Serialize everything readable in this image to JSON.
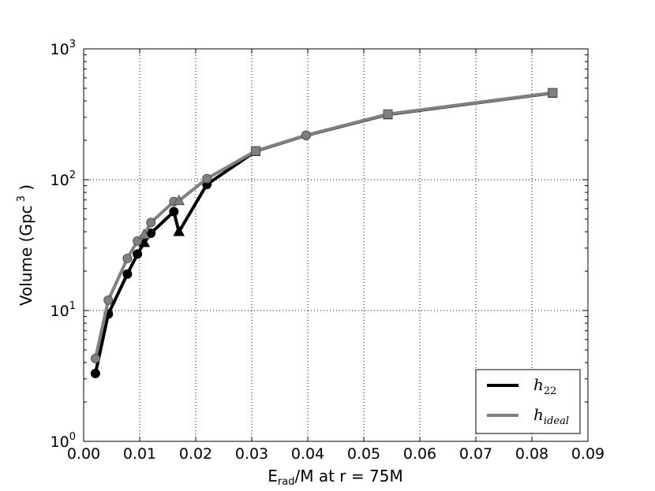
{
  "chart_data": {
    "type": "line",
    "xlabel": {
      "base": "E",
      "sub": "rad",
      "rest": "/M at r = 75M"
    },
    "ylabel": {
      "text": "Volume (Gpc",
      "sup": "3",
      "close": " )"
    },
    "xlim": [
      0.0,
      0.09
    ],
    "ylim": [
      1,
      1000
    ],
    "yscale": "log",
    "grid": true,
    "x_ticks": [
      0.0,
      0.01,
      0.02,
      0.03,
      0.04,
      0.05,
      0.06,
      0.07,
      0.08,
      0.09
    ],
    "x_tick_labels": [
      "0.00",
      "0.01",
      "0.02",
      "0.03",
      "0.04",
      "0.05",
      "0.06",
      "0.07",
      "0.08",
      "0.09"
    ],
    "y_ticks": [
      {
        "value": 1,
        "base": "10",
        "exp": "0"
      },
      {
        "value": 10,
        "base": "10",
        "exp": "1"
      },
      {
        "value": 100,
        "base": "10",
        "exp": "2"
      },
      {
        "value": 1000,
        "base": "10",
        "exp": "3"
      }
    ],
    "legend": {
      "placement": "lower-right"
    },
    "series": [
      {
        "name": "h",
        "name_sub": "22",
        "color": "#000000",
        "points": [
          {
            "x": 0.0021,
            "y": 3.3,
            "marker": "circle"
          },
          {
            "x": 0.0044,
            "y": 9.4,
            "marker": "circle"
          },
          {
            "x": 0.0078,
            "y": 19,
            "marker": "circle"
          },
          {
            "x": 0.0096,
            "y": 27,
            "marker": "circle"
          },
          {
            "x": 0.0108,
            "y": 33,
            "marker": "triangle"
          },
          {
            "x": 0.012,
            "y": 39,
            "marker": "circle"
          },
          {
            "x": 0.0161,
            "y": 57,
            "marker": "circle"
          },
          {
            "x": 0.017,
            "y": 40,
            "marker": "triangle"
          },
          {
            "x": 0.022,
            "y": 92,
            "marker": "circle"
          },
          {
            "x": 0.0307,
            "y": 165,
            "marker": "square"
          },
          {
            "x": 0.0397,
            "y": 218,
            "marker": "circle"
          },
          {
            "x": 0.0543,
            "y": 315,
            "marker": "square"
          },
          {
            "x": 0.0837,
            "y": 460,
            "marker": "square"
          }
        ]
      },
      {
        "name": "h",
        "name_sub": "ideal",
        "color": "#808080",
        "points": [
          {
            "x": 0.0021,
            "y": 4.3,
            "marker": "circle"
          },
          {
            "x": 0.0044,
            "y": 12,
            "marker": "circle"
          },
          {
            "x": 0.0078,
            "y": 25,
            "marker": "circle"
          },
          {
            "x": 0.0096,
            "y": 34,
            "marker": "circle"
          },
          {
            "x": 0.0108,
            "y": 38,
            "marker": "triangle"
          },
          {
            "x": 0.012,
            "y": 47,
            "marker": "circle"
          },
          {
            "x": 0.0161,
            "y": 68,
            "marker": "circle"
          },
          {
            "x": 0.017,
            "y": 69,
            "marker": "triangle"
          },
          {
            "x": 0.022,
            "y": 102,
            "marker": "circle"
          },
          {
            "x": 0.0307,
            "y": 166,
            "marker": "square"
          },
          {
            "x": 0.0397,
            "y": 219,
            "marker": "circle"
          },
          {
            "x": 0.0543,
            "y": 317,
            "marker": "square"
          },
          {
            "x": 0.0837,
            "y": 462,
            "marker": "square"
          }
        ]
      }
    ]
  }
}
